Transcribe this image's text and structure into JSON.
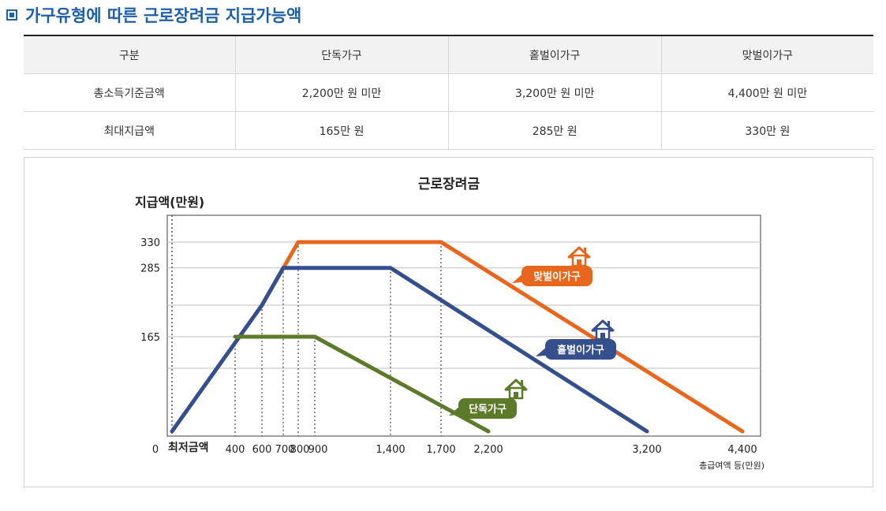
{
  "page": {
    "title": "가구유형에 따른 근로장려금 지급가능액"
  },
  "table": {
    "headers": [
      "구분",
      "단독가구",
      "홑벌이가구",
      "맞벌이가구"
    ],
    "rows": [
      [
        "총소득기준금액",
        "2,200만 원 미만",
        "3,200만 원 미만",
        "4,400만 원 미만"
      ],
      [
        "최대지급액",
        "165만 원",
        "285만 원",
        "330만 원"
      ]
    ]
  },
  "chart_data": {
    "type": "line",
    "title": "근로장려금",
    "ylabel": "지급액(만원)",
    "xlabel": "총급여액 등(만원)",
    "x_origin_label": "0",
    "x_min_label": "최저금액",
    "x_ticks": [
      400,
      600,
      700,
      800,
      900,
      1400,
      1700,
      2200,
      3200,
      4400
    ],
    "x_tick_labels": [
      "400",
      "600",
      "700",
      "800",
      "900",
      "1,400",
      "1,700",
      "2,200",
      "3,200",
      "4,400"
    ],
    "y_ticks": [
      165,
      285,
      330
    ],
    "y_tick_labels": [
      "165",
      "285",
      "330"
    ],
    "xlim": [
      0,
      4400
    ],
    "ylim": [
      0,
      330
    ],
    "series": [
      {
        "name": "맞벌이가구",
        "color": "#e8671f",
        "icon": "house-icon",
        "points": [
          [
            600,
            220
          ],
          [
            800,
            330
          ],
          [
            1700,
            330
          ],
          [
            4400,
            0
          ]
        ]
      },
      {
        "name": "홑벌이가구",
        "color": "#354f8d",
        "icon": "house-icon",
        "points": [
          [
            0,
            0
          ],
          [
            600,
            220
          ],
          [
            700,
            285
          ],
          [
            1400,
            285
          ],
          [
            3200,
            0
          ]
        ]
      },
      {
        "name": "단독가구",
        "color": "#5c7a2a",
        "icon": "house-icon",
        "points": [
          [
            400,
            165
          ],
          [
            900,
            165
          ],
          [
            2200,
            0
          ]
        ]
      }
    ]
  }
}
